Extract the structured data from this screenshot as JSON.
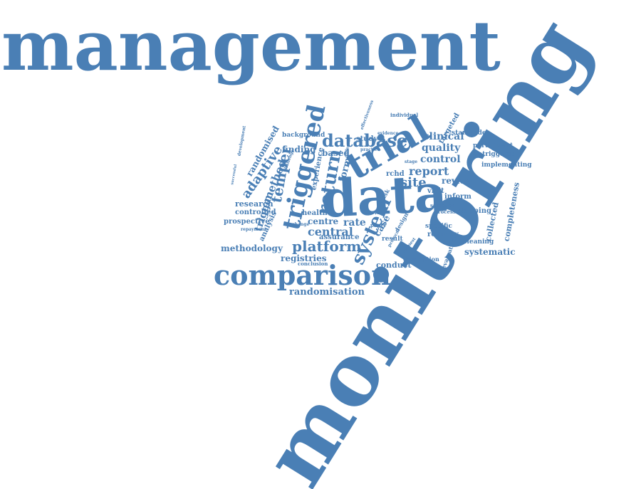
{
  "colors": {
    "word": "#4a7fb5",
    "background": "#ffffff"
  },
  "words": [
    {
      "text": "management",
      "weight": 100
    },
    {
      "text": "monitoring",
      "weight": 100
    },
    {
      "text": "data",
      "weight": 60
    },
    {
      "text": "trial",
      "weight": 45
    },
    {
      "text": "comparison",
      "weight": 40
    },
    {
      "text": "triggered",
      "weight": 30
    },
    {
      "text": "database",
      "weight": 25
    },
    {
      "text": "return",
      "weight": 24
    },
    {
      "text": "system",
      "weight": 22
    },
    {
      "text": "platform",
      "weight": 18
    },
    {
      "text": "site",
      "weight": 17
    },
    {
      "text": "report",
      "weight": 16
    },
    {
      "text": "temper",
      "weight": 16
    },
    {
      "text": "adaptive",
      "weight": 15
    },
    {
      "text": "control",
      "weight": 14
    },
    {
      "text": "central",
      "weight": 14
    },
    {
      "text": "method",
      "weight": 14
    },
    {
      "text": "quality",
      "weight": 13
    },
    {
      "text": "clinical",
      "weight": 13
    },
    {
      "text": "review",
      "weight": 12
    },
    {
      "text": "randomisation",
      "weight": 12
    },
    {
      "text": "methodology",
      "weight": 12
    },
    {
      "text": "trigger",
      "weight": 12
    },
    {
      "text": "randomised",
      "weight": 11
    },
    {
      "text": "finding",
      "weight": 11
    },
    {
      "text": "based",
      "weight": 11
    },
    {
      "text": "form",
      "weight": 11
    },
    {
      "text": "rate",
      "weight": 11
    },
    {
      "text": "case",
      "weight": 11
    },
    {
      "text": "centre",
      "weight": 11
    },
    {
      "text": "registries",
      "weight": 11
    },
    {
      "text": "conduct",
      "weight": 10
    },
    {
      "text": "systematic",
      "weight": 10
    },
    {
      "text": "collected",
      "weight": 10
    },
    {
      "text": "completeness",
      "weight": 10
    },
    {
      "text": "research",
      "weight": 10
    },
    {
      "text": "controlled",
      "weight": 9
    },
    {
      "text": "prospective",
      "weight": 9
    },
    {
      "text": "analysis",
      "weight": 9
    },
    {
      "text": "health",
      "weight": 9
    },
    {
      "text": "assurance",
      "weight": 9
    },
    {
      "text": "study",
      "weight": 9
    },
    {
      "text": "rchd",
      "weight": 9
    },
    {
      "text": "visit",
      "weight": 9
    },
    {
      "text": "inform",
      "weight": 9
    },
    {
      "text": "registry",
      "weight": 9
    },
    {
      "text": "stopping",
      "weight": 9
    },
    {
      "text": "participant",
      "weight": 8
    },
    {
      "text": "untriggered",
      "weight": 8
    },
    {
      "text": "implementing",
      "weight": 8
    },
    {
      "text": "targeted",
      "weight": 8
    },
    {
      "text": "stampede",
      "weight": 8
    },
    {
      "text": "background",
      "weight": 8
    },
    {
      "text": "result",
      "weight": 8
    },
    {
      "text": "cleaning",
      "weight": 8
    },
    {
      "text": "specific",
      "weight": 7
    },
    {
      "text": "experience",
      "weight": 8
    },
    {
      "text": "evaluation",
      "weight": 7
    },
    {
      "text": "description",
      "weight": 7
    },
    {
      "text": "design",
      "weight": 7
    },
    {
      "text": "selection",
      "weight": 6
    },
    {
      "text": "processes",
      "weight": 6
    },
    {
      "text": "individual",
      "weight": 6
    },
    {
      "text": "paper",
      "weight": 6
    },
    {
      "text": "conclusion",
      "weight": 6
    },
    {
      "text": "repayment",
      "weight": 5
    },
    {
      "text": "development",
      "weight": 5
    },
    {
      "text": "successful",
      "weight": 5
    },
    {
      "text": "challenge",
      "weight": 5
    },
    {
      "text": "change",
      "weight": 5
    },
    {
      "text": "practice",
      "weight": 5
    },
    {
      "text": "different",
      "weight": 5
    },
    {
      "text": "risk",
      "weight": 6
    },
    {
      "text": "stage",
      "weight": 5
    },
    {
      "text": "evidence",
      "weight": 5
    },
    {
      "text": "protocol",
      "weight": 5
    },
    {
      "text": "request",
      "weight": 5
    },
    {
      "text": "effectiveness",
      "weight": 5
    }
  ]
}
